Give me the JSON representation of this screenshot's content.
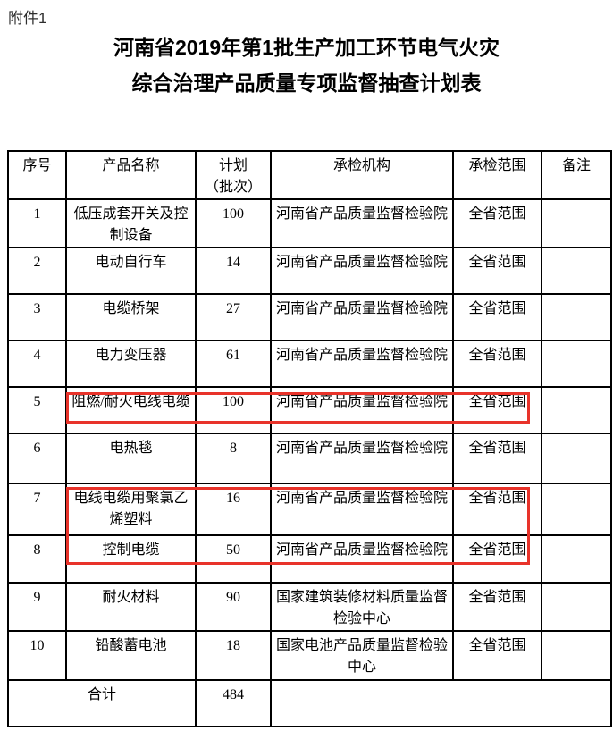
{
  "page": {
    "attachment_label": "附件1",
    "title_line1": "河南省2019年第1批生产加工环节电气火灾",
    "title_line2": "综合治理产品质量专项监督抽查计划表"
  },
  "table": {
    "headers": [
      "序号",
      "产品名称",
      "计划\n（批次）",
      "承检机构",
      "承检范围",
      "备注"
    ],
    "rows": [
      {
        "no": "1",
        "product": "低压成套开关及控制设备",
        "plan": "100",
        "agency": "河南省产品质量监督检验院",
        "scope": "全省范围",
        "remark": "",
        "highlighted": false
      },
      {
        "no": "2",
        "product": "电动自行车",
        "plan": "14",
        "agency": "河南省产品质量监督检验院",
        "scope": "全省范围",
        "remark": "",
        "highlighted": false
      },
      {
        "no": "3",
        "product": "电缆桥架",
        "plan": "27",
        "agency": "河南省产品质量监督检验院",
        "scope": "全省范围",
        "remark": "",
        "highlighted": false
      },
      {
        "no": "4",
        "product": "电力变压器",
        "plan": "61",
        "agency": "河南省产品质量监督检验院",
        "scope": "全省范围",
        "remark": "",
        "highlighted": false
      },
      {
        "no": "5",
        "product": "阻燃/耐火电线电缆",
        "plan": "100",
        "agency": "河南省产品质量监督检验院",
        "scope": "全省范围",
        "remark": "",
        "highlighted": true
      },
      {
        "no": "6",
        "product": "电热毯",
        "plan": "8",
        "agency": "河南省产品质量监督检验院",
        "scope": "全省范围",
        "remark": "",
        "highlighted": false
      },
      {
        "no": "7",
        "product": "电线电缆用聚氯乙烯塑料",
        "plan": "16",
        "agency": "河南省产品质量监督检验院",
        "scope": "全省范围",
        "remark": "",
        "highlighted": true
      },
      {
        "no": "8",
        "product": "控制电缆",
        "plan": "50",
        "agency": "河南省产品质量监督检验院",
        "scope": "全省范围",
        "remark": "",
        "highlighted": true
      },
      {
        "no": "9",
        "product": "耐火材料",
        "plan": "90",
        "agency": "国家建筑装修材料质量监督检验中心",
        "scope": "全省范围",
        "remark": "",
        "highlighted": false
      },
      {
        "no": "10",
        "product": "铅酸蓄电池",
        "plan": "18",
        "agency": "国家电池产品质量监督检验中心",
        "scope": "全省范围",
        "remark": "",
        "highlighted": false
      }
    ],
    "total_row": {
      "label": "合计",
      "plan": "484"
    }
  },
  "highlight_color": "#e8332a"
}
